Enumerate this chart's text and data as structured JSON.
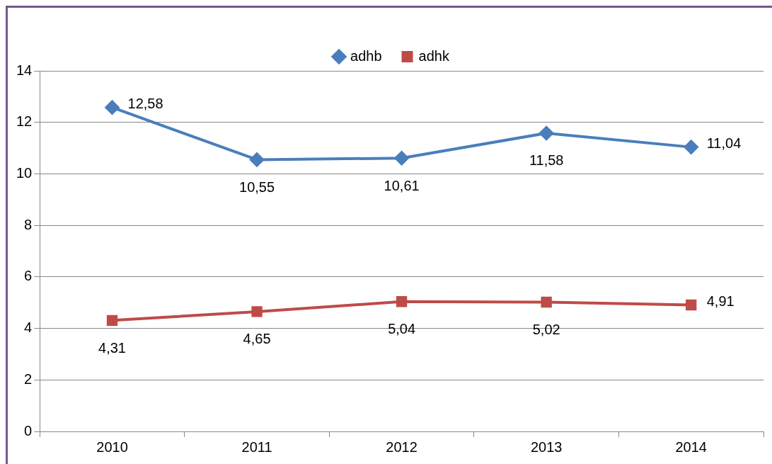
{
  "chart_data": {
    "type": "line",
    "categories": [
      "2010",
      "2011",
      "2012",
      "2013",
      "2014"
    ],
    "series": [
      {
        "name": "adhb",
        "color": "#4a7ebb",
        "marker": "diamond",
        "values": [
          12.58,
          10.55,
          10.61,
          11.58,
          11.04
        ],
        "value_labels": [
          "12,58",
          "10,55",
          "10,61",
          "11,58",
          "11,04"
        ]
      },
      {
        "name": "adhk",
        "color": "#be4b48",
        "marker": "square",
        "values": [
          4.31,
          4.65,
          5.04,
          5.02,
          4.91
        ],
        "value_labels": [
          "4,31",
          "4,65",
          "5,04",
          "5,02",
          "4,91"
        ]
      }
    ],
    "ylim": [
      0,
      14
    ],
    "yticks": [
      0,
      2,
      4,
      6,
      8,
      10,
      12,
      14
    ],
    "grid": "y",
    "legend": "top",
    "line_style": "solid"
  }
}
